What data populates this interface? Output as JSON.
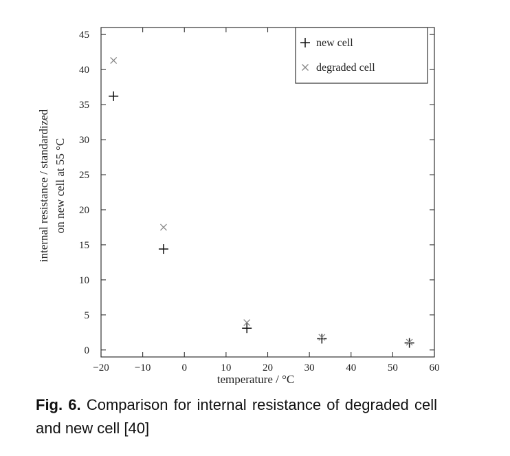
{
  "chart_data": {
    "type": "scatter",
    "xlabel": "temperature / °C",
    "ylabel_lines": [
      "internal resistance / standardized",
      "on new cell at 55 °C"
    ],
    "xlim": [
      -20,
      60
    ],
    "ylim": [
      -1,
      46
    ],
    "x_ticks": [
      -20,
      -10,
      0,
      10,
      20,
      30,
      40,
      50,
      60
    ],
    "y_ticks": [
      0,
      5,
      10,
      15,
      20,
      25,
      30,
      35,
      40,
      45
    ],
    "grid": false,
    "legend_position": "top-right",
    "series": [
      {
        "name": "new cell",
        "marker": "plus",
        "points": [
          {
            "x": -17,
            "y": 36.2
          },
          {
            "x": -5,
            "y": 14.4
          },
          {
            "x": 15,
            "y": 3.1
          },
          {
            "x": 33,
            "y": 1.6
          },
          {
            "x": 54,
            "y": 1.0
          }
        ]
      },
      {
        "name": "degraded cell",
        "marker": "cross",
        "points": [
          {
            "x": -17,
            "y": 41.3
          },
          {
            "x": -5,
            "y": 17.5
          },
          {
            "x": 15,
            "y": 3.9
          },
          {
            "x": 33,
            "y": 1.8
          },
          {
            "x": 54,
            "y": 1.1
          }
        ]
      }
    ]
  },
  "caption": {
    "label": "Fig. 6.",
    "text": "Comparison for internal resistance of degraded cell and new cell [40]"
  }
}
